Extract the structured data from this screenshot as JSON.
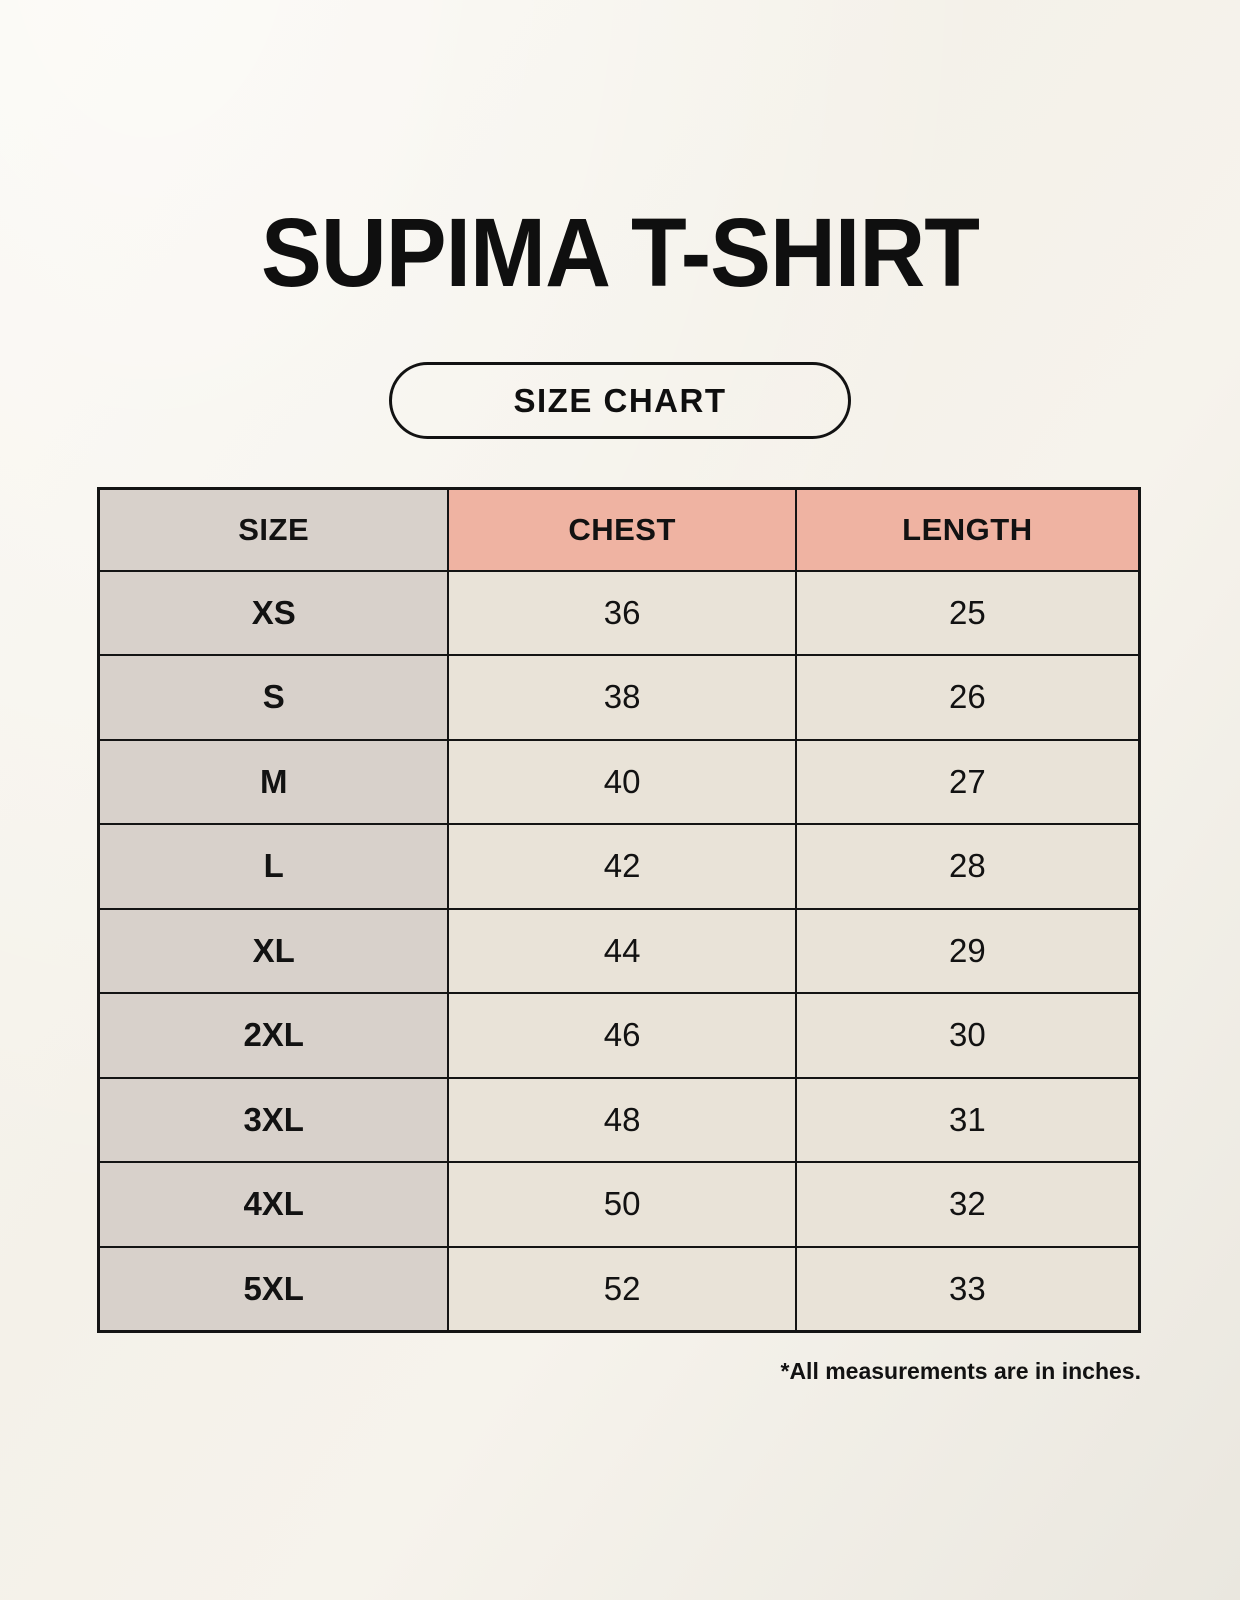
{
  "page_title": "SUPIMA T-SHIRT",
  "badge": {
    "label": "SIZE CHART"
  },
  "footnote": "*All measurements are in inches.",
  "colors": {
    "background": "#f6f3ec",
    "size_column_bg": "#d8d1cb",
    "accent_header_bg": "#efb3a2",
    "value_cell_bg": "#e9e3d8",
    "border": "#141414",
    "text": "#121212"
  },
  "chart_data": {
    "type": "table",
    "title": "SUPIMA T-SHIRT size chart",
    "columns": [
      "SIZE",
      "CHEST",
      "LENGTH"
    ],
    "units": "inches",
    "rows": [
      [
        "XS",
        "36",
        "25"
      ],
      [
        "S",
        "38",
        "26"
      ],
      [
        "M",
        "40",
        "27"
      ],
      [
        "L",
        "42",
        "28"
      ],
      [
        "XL",
        "44",
        "29"
      ],
      [
        "2XL",
        "46",
        "30"
      ],
      [
        "3XL",
        "48",
        "31"
      ],
      [
        "4XL",
        "50",
        "32"
      ],
      [
        "5XL",
        "52",
        "33"
      ]
    ]
  }
}
